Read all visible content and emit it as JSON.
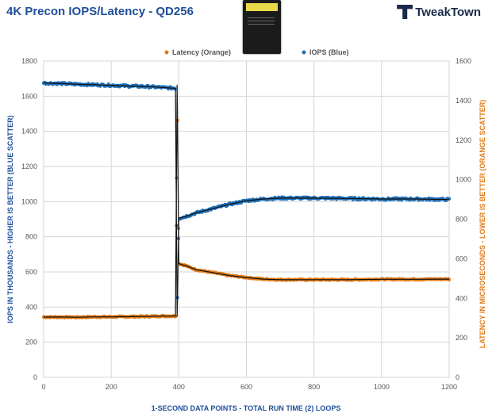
{
  "header": {
    "title": "4K Precon IOPS/Latency - QD256",
    "logo_text": "TweakTown"
  },
  "chart_data": {
    "type": "scatter",
    "title": "4K Precon IOPS/Latency - QD256",
    "xlabel": "1-SECOND DATA POINTS - TOTAL RUN TIME (2) LOOPS",
    "ylabel_left": "IOPS IN THOUSANDS - HIGHER IS BETTER (BLUE SCATTER)",
    "ylabel_right": "LATENCY IN MICROSECONDS - LOWER IS BETTER (ORANGE SCATTER)",
    "xlim": [
      0,
      1200
    ],
    "ylim_left": [
      0,
      1800
    ],
    "ylim_right": [
      0,
      1600
    ],
    "x_ticks": [
      "0",
      "200",
      "400",
      "600",
      "800",
      "1000",
      "1200"
    ],
    "y_ticks_left": [
      "0",
      "200",
      "400",
      "600",
      "800",
      "1000",
      "1200",
      "1400",
      "1600",
      "1800"
    ],
    "y_ticks_right": [
      "0",
      "200",
      "400",
      "600",
      "800",
      "1000",
      "1200",
      "1400",
      "1600"
    ],
    "grid": true,
    "legend_position": "top",
    "series": [
      {
        "name": "Latency (Orange)",
        "axis": "right",
        "color": "#e07b1a",
        "x": [
          0,
          50,
          100,
          150,
          200,
          250,
          300,
          350,
          390,
          395,
          400,
          420,
          450,
          500,
          550,
          600,
          650,
          700,
          800,
          900,
          1000,
          1100,
          1200
        ],
        "y": [
          305,
          305,
          304,
          306,
          306,
          307,
          308,
          310,
          310,
          1480,
          575,
          565,
          545,
          530,
          515,
          505,
          497,
          494,
          494,
          494,
          496,
          496,
          497
        ]
      },
      {
        "name": "IOPS (Blue)",
        "axis": "left",
        "color": "#1f6fb8",
        "x": [
          0,
          50,
          100,
          150,
          200,
          250,
          300,
          350,
          390,
          395,
          400,
          420,
          450,
          500,
          550,
          600,
          650,
          700,
          800,
          900,
          1000,
          1100,
          1200
        ],
        "y": [
          1675,
          1672,
          1668,
          1665,
          1662,
          1658,
          1655,
          1650,
          1645,
          345,
          905,
          915,
          935,
          960,
          985,
          1005,
          1015,
          1020,
          1020,
          1018,
          1015,
          1015,
          1012
        ]
      }
    ]
  }
}
